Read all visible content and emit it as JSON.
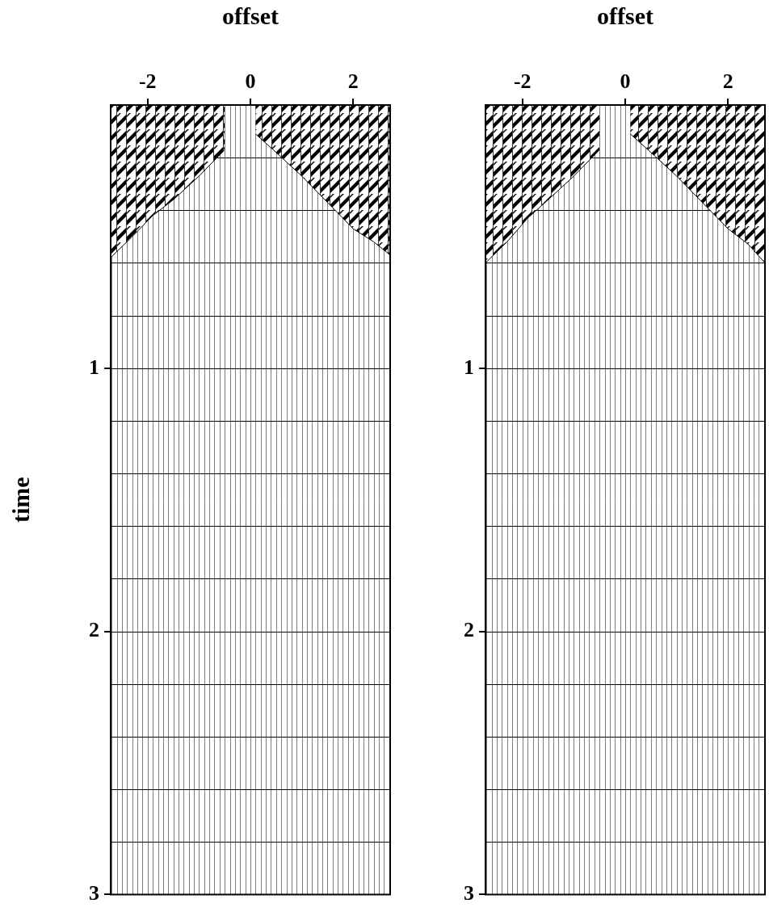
{
  "chart_data": [
    {
      "type": "area",
      "x_label": "offset",
      "y_label": "time",
      "xlim": [
        -2.72,
        2.72
      ],
      "xticks": [
        -2,
        0,
        2
      ],
      "ylim": [
        0,
        3
      ],
      "yticks": [
        1,
        2,
        3
      ],
      "grid": true,
      "series": [
        {
          "color": "#000000",
          "x": [
            -2.72,
            -2.3,
            -1.9,
            -1.5,
            -1.0,
            -0.5
          ],
          "values": [
            0.58,
            0.5,
            0.42,
            0.36,
            0.27,
            0.17
          ]
        },
        {
          "color": "#000000",
          "x": [
            0.1,
            0.5,
            1.0,
            1.5,
            2.0,
            2.4,
            2.72
          ],
          "values": [
            0.11,
            0.18,
            0.27,
            0.37,
            0.47,
            0.52,
            0.57
          ]
        }
      ]
    },
    {
      "type": "area",
      "x_label": "offset",
      "xlim": [
        -2.72,
        2.72
      ],
      "xticks": [
        -2,
        0,
        2
      ],
      "ylim": [
        0,
        3
      ],
      "yticks": [
        1,
        2,
        3
      ],
      "grid": true,
      "series": [
        {
          "color": "#000000",
          "x": [
            -2.72,
            -2.3,
            -1.9,
            -1.5,
            -1.0,
            -0.5
          ],
          "values": [
            0.6,
            0.52,
            0.43,
            0.36,
            0.27,
            0.17
          ]
        },
        {
          "color": "#000000",
          "x": [
            0.1,
            0.5,
            1.0,
            1.5,
            2.0,
            2.4,
            2.72
          ],
          "values": [
            0.11,
            0.18,
            0.27,
            0.37,
            0.47,
            0.53,
            0.6
          ]
        }
      ]
    }
  ]
}
